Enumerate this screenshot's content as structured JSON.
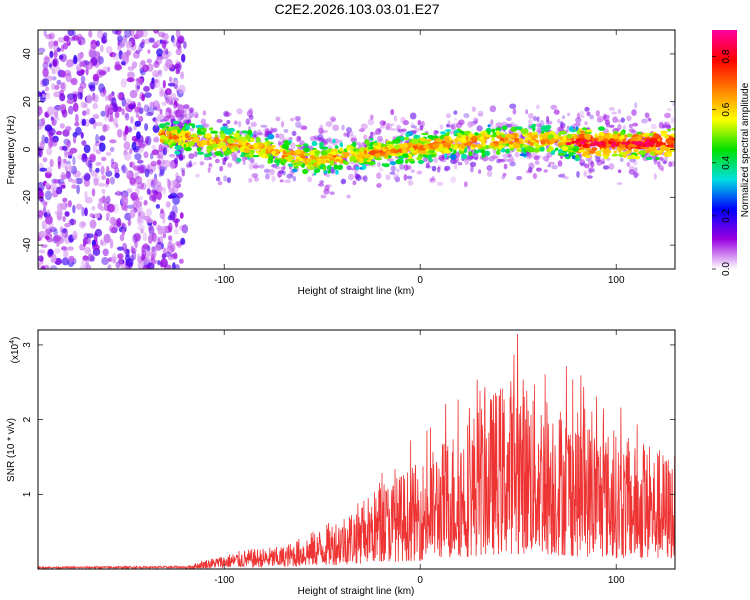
{
  "figure_title": "C2E2.2026.103.03.01.E27",
  "chart_data": [
    {
      "type": "heatmap",
      "name": "spectrogram",
      "xlabel": "Height of straight line (km)",
      "ylabel": "Frequency (Hz)",
      "xlim": [
        -195,
        130
      ],
      "ylim": [
        -50,
        50
      ],
      "xticks": [
        -100,
        0,
        100
      ],
      "yticks": [
        -40,
        -20,
        0,
        20,
        40
      ],
      "xtick_labels": [
        "-100",
        "0",
        "100"
      ],
      "ytick_labels": [
        "-40",
        "-20",
        "0",
        "20",
        "40"
      ],
      "colorbar": {
        "label": "Normalized spectral amplitude",
        "range": [
          0,
          0.9
        ],
        "ticks": [
          0,
          0.2,
          0.4,
          0.6,
          0.8
        ],
        "tick_labels": [
          "0.0",
          "0.2",
          "0.4",
          "0.6",
          "0.8"
        ],
        "colors": [
          "#ffffff",
          "#9a00e0",
          "#0000ff",
          "#00e0e0",
          "#00e000",
          "#ffff00",
          "#ff8000",
          "#ff0000",
          "#ff00a0"
        ]
      },
      "band_center": [
        {
          "x": -130,
          "f": 6
        },
        {
          "x": -110,
          "f": 4
        },
        {
          "x": -90,
          "f": 2
        },
        {
          "x": -70,
          "f": -2
        },
        {
          "x": -55,
          "f": -4
        },
        {
          "x": -40,
          "f": -3
        },
        {
          "x": -20,
          "f": -1
        },
        {
          "x": 0,
          "f": 1
        },
        {
          "x": 20,
          "f": 3
        },
        {
          "x": 40,
          "f": 4
        },
        {
          "x": 60,
          "f": 4
        },
        {
          "x": 80,
          "f": 3
        },
        {
          "x": 100,
          "f": 2
        },
        {
          "x": 130,
          "f": 3
        }
      ],
      "noise_region_x": [
        -195,
        -120
      ]
    },
    {
      "type": "line",
      "name": "snr",
      "xlabel": "Height of straight line (km)",
      "ylabel": "SNR (10 * v/v)",
      "y_multiplier_label": "(x10",
      "y_multiplier_exp": "4",
      "y_multiplier_close": ")",
      "xlim": [
        -195,
        130
      ],
      "ylim": [
        0,
        3.2
      ],
      "xticks": [
        -100,
        0,
        100
      ],
      "yticks": [
        1,
        2,
        3
      ],
      "xtick_labels": [
        "-100",
        "0",
        "100"
      ],
      "ytick_labels": [
        "1",
        "2",
        "3"
      ],
      "color": "#ee3333",
      "envelope": [
        {
          "x": -195,
          "y": 0.02
        },
        {
          "x": -120,
          "y": 0.03
        },
        {
          "x": -110,
          "y": 0.12
        },
        {
          "x": -90,
          "y": 0.25
        },
        {
          "x": -70,
          "y": 0.3
        },
        {
          "x": -50,
          "y": 0.55
        },
        {
          "x": -35,
          "y": 0.8
        },
        {
          "x": -20,
          "y": 1.1
        },
        {
          "x": 0,
          "y": 1.4
        },
        {
          "x": 20,
          "y": 1.9
        },
        {
          "x": 40,
          "y": 2.4
        },
        {
          "x": 50,
          "y": 2.6
        },
        {
          "x": 70,
          "y": 2.2
        },
        {
          "x": 90,
          "y": 1.9
        },
        {
          "x": 110,
          "y": 1.6
        },
        {
          "x": 130,
          "y": 1.5
        }
      ]
    }
  ]
}
